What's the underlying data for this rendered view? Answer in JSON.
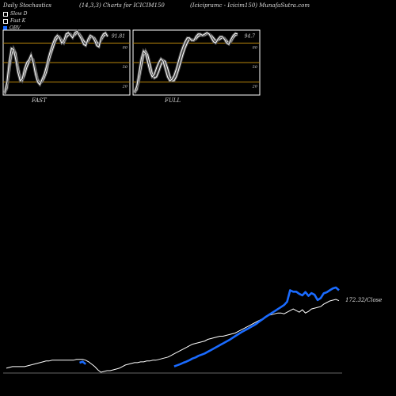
{
  "header": {
    "left": "Daily Stochastics",
    "center": "(14,3,3) Charts for ICICIM150",
    "right": "(Icicipramc - Icicim150) MunafaSutra.com"
  },
  "legend": [
    {
      "label": "Slow  D",
      "color": "#ffffff"
    },
    {
      "label": "Fast K",
      "color": "#ffffff"
    },
    {
      "label": "OBV",
      "color": "#1a6bff"
    }
  ],
  "colors": {
    "background": "#000000",
    "panel_border": "#ffffff",
    "level_line": "#b8860b",
    "obv": "#1a6bff",
    "close": "#ffffff"
  },
  "chart_data": [
    {
      "type": "line",
      "name": "fast-stochastic",
      "title": "FAST",
      "current_value_label": "91.81",
      "ylim": [
        0,
        100
      ],
      "levels": [
        80,
        50,
        20
      ],
      "level_labels": [
        "80",
        "50",
        "20"
      ],
      "series": [
        {
          "values": [
            2,
            10,
            35,
            60,
            72,
            65,
            45,
            28,
            22,
            30,
            42,
            50,
            58,
            55,
            40,
            25,
            18,
            20,
            26,
            35,
            50,
            62,
            72,
            82,
            88,
            90,
            85,
            80,
            88,
            92,
            94,
            90,
            92,
            96,
            95,
            90,
            84,
            80,
            82,
            88,
            90,
            88,
            82,
            78,
            84,
            90,
            93,
            92
          ]
        },
        {
          "values": [
            4,
            20,
            50,
            72,
            70,
            55,
            35,
            22,
            25,
            40,
            50,
            54,
            62,
            50,
            32,
            20,
            16,
            24,
            32,
            44,
            58,
            70,
            80,
            88,
            92,
            88,
            80,
            84,
            94,
            96,
            92,
            88,
            96,
            98,
            92,
            86,
            78,
            76,
            86,
            92,
            90,
            84,
            76,
            74,
            88,
            94,
            96,
            90
          ]
        }
      ]
    },
    {
      "type": "line",
      "name": "full-stochastic",
      "title": "FULL",
      "current_value_label": "94.7",
      "ylim": [
        0,
        100
      ],
      "levels": [
        80,
        50,
        20
      ],
      "level_labels": [
        "80",
        "50",
        "20"
      ],
      "series": [
        {
          "values": [
            3,
            8,
            22,
            42,
            60,
            68,
            62,
            48,
            34,
            26,
            28,
            36,
            46,
            54,
            52,
            42,
            30,
            22,
            22,
            28,
            38,
            50,
            62,
            72,
            80,
            86,
            86,
            84,
            86,
            90,
            92,
            91,
            92,
            94,
            94,
            92,
            88,
            84,
            84,
            86,
            88,
            88,
            84,
            80,
            82,
            88,
            92,
            93
          ]
        },
        {
          "values": [
            5,
            14,
            34,
            56,
            68,
            64,
            50,
            36,
            28,
            32,
            42,
            50,
            56,
            52,
            40,
            28,
            22,
            24,
            30,
            40,
            52,
            64,
            74,
            82,
            88,
            88,
            84,
            84,
            90,
            94,
            94,
            92,
            94,
            96,
            94,
            88,
            82,
            80,
            86,
            90,
            90,
            86,
            80,
            78,
            86,
            92,
            95,
            94
          ]
        }
      ]
    },
    {
      "type": "line",
      "name": "obv-close",
      "series": [
        {
          "name": "OBV",
          "values": [
            -50,
            -50,
            -50,
            -50,
            -50,
            -50,
            -50,
            -50,
            -50,
            -50,
            -50,
            -50,
            -50,
            -50,
            -50,
            -50,
            -50,
            -50,
            -50,
            -50,
            -50,
            -50,
            -50,
            -50,
            110,
            150,
            60,
            -120,
            -200,
            -210,
            -210,
            -220,
            -220,
            -230,
            -230,
            -230,
            -230,
            -230,
            -230,
            -230,
            -230,
            -230,
            -230,
            -230,
            -230,
            -230,
            -230,
            -230,
            -220,
            -200,
            -180,
            -150,
            -120,
            -90,
            -60,
            -20,
            20,
            60,
            110,
            150,
            200,
            260,
            300,
            360,
            400,
            440,
            500,
            560,
            620,
            680,
            740,
            800,
            860,
            920,
            990,
            1060,
            1130,
            1200,
            1260,
            1320,
            1380,
            1440,
            1510,
            1590,
            1670,
            1750,
            1820,
            1890,
            1960,
            2030,
            2100,
            2170,
            2290,
            2700,
            2650,
            2650,
            2570,
            2520,
            2640,
            2500,
            2600,
            2540,
            2350,
            2420,
            2590,
            2630,
            2700,
            2770,
            2800,
            2700
          ]
        },
        {
          "name": "Close",
          "values": [
            88,
            89,
            90,
            90,
            90,
            90,
            90,
            91,
            92,
            93,
            94,
            95,
            96,
            97,
            97,
            98,
            98,
            98,
            98,
            98,
            98,
            98,
            98,
            99,
            99,
            99,
            98,
            96,
            93,
            90,
            86,
            83,
            84,
            85,
            85,
            86,
            87,
            88,
            90,
            92,
            93,
            94,
            95,
            95,
            96,
            96,
            97,
            97,
            98,
            98,
            99,
            100,
            101,
            102,
            104,
            106,
            108,
            110,
            112,
            114,
            116,
            118,
            119,
            120,
            121,
            122,
            124,
            125,
            126,
            127,
            128,
            128,
            129,
            130,
            131,
            132,
            134,
            136,
            138,
            140,
            142,
            144,
            146,
            148,
            150,
            152,
            154,
            155,
            156,
            157,
            157,
            156,
            158,
            160,
            162,
            160,
            158,
            161,
            157,
            159,
            162,
            163,
            164,
            165,
            168,
            170,
            172,
            173,
            174,
            172.32
          ]
        }
      ],
      "last_close_label": "172.32/Close"
    }
  ]
}
